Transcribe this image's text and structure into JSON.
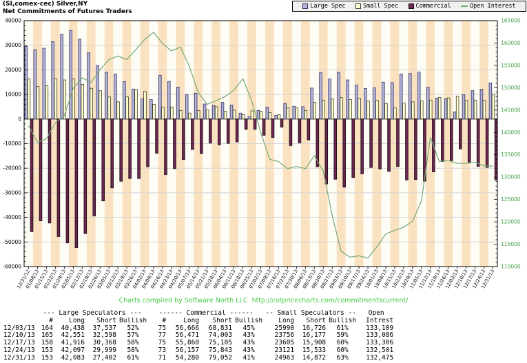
{
  "page": {
    "title_line1": "(SI,comex-cec) Silver,NY",
    "title_line2": "Net Commitments of Futures Traders",
    "footer": "Charts compiled by Software North LLC  http://cotpricecharts.com/commitmentscurrent/"
  },
  "legend": {
    "items": [
      {
        "label": "Large Spec",
        "type": "box",
        "color": "#b3b3da",
        "border": "#31315e"
      },
      {
        "label": "Small Spec",
        "type": "box",
        "color": "#ffffd0",
        "border": "#3c3c28"
      },
      {
        "label": "Commercial",
        "type": "box",
        "color": "#6b2750",
        "border": "#16060f"
      },
      {
        "label": "Open Interest",
        "type": "line",
        "color": "#74a874"
      }
    ]
  },
  "chart_data": {
    "type": "bar",
    "title": "Net Commitments of Futures Traders - (SI,comex-cec) Silver,NY",
    "legend_position": "top-right",
    "x_labels": [
      "12/31/12",
      "01/08/13",
      "01/15/13",
      "01/22/13",
      "01/29/13",
      "02/05/13",
      "02/12/13",
      "02/19/13",
      "02/26/13",
      "03/05/13",
      "03/12/13",
      "03/19/13",
      "03/26/13",
      "04/02/13",
      "04/09/13",
      "04/16/13",
      "04/23/13",
      "04/30/13",
      "05/07/13",
      "05/14/13",
      "05/21/13",
      "05/28/13",
      "06/04/13",
      "06/11/13",
      "06/18/13",
      "06/25/13",
      "07/02/13",
      "07/09/13",
      "07/16/13",
      "07/23/13",
      "07/30/13",
      "08/06/13",
      "08/13/13",
      "08/20/13",
      "08/27/13",
      "09/03/13",
      "09/10/13",
      "09/17/13",
      "09/24/13",
      "10/01/13",
      "10/08/13",
      "10/15/13",
      "10/22/13",
      "10/29/13",
      "11/05/13",
      "11/12/13",
      "11/19/13",
      "11/26/13",
      "12/03/13",
      "12/10/13",
      "12/17/13",
      "12/24/13",
      "12/31/13"
    ],
    "series": [
      {
        "key": "large",
        "name": "Large Spec",
        "axis": "left",
        "type": "bar",
        "values": [
          29500,
          28200,
          28800,
          31500,
          34500,
          36000,
          32500,
          26900,
          21800,
          19000,
          18300,
          15200,
          12200,
          8200,
          7900,
          17800,
          15300,
          13000,
          10000,
          10500,
          6100,
          5500,
          6800,
          5700,
          2400,
          900,
          3500,
          4900,
          1500,
          6300,
          5200,
          5000,
          12600,
          18800,
          16300,
          19000,
          15900,
          13800,
          12400,
          12700,
          15000,
          14800,
          18300,
          18500,
          19100,
          12900,
          8500,
          8300,
          2901,
          9953,
          11548,
          12098,
          14681
        ]
      },
      {
        "key": "small",
        "name": "Small Spec",
        "axis": "left",
        "type": "bar",
        "values": [
          16300,
          13200,
          13500,
          16300,
          15900,
          16300,
          14100,
          12500,
          11500,
          9000,
          7000,
          9000,
          12000,
          11200,
          6000,
          4800,
          4900,
          3500,
          2400,
          3500,
          3700,
          5000,
          3100,
          3600,
          1800,
          3300,
          3100,
          2600,
          1800,
          4500,
          4500,
          3500,
          6800,
          7600,
          8200,
          8700,
          7900,
          8500,
          7300,
          7600,
          6300,
          4500,
          6500,
          7000,
          7400,
          7700,
          8800,
          8600,
          9264,
          7579,
          7697,
          7588,
          10091
        ]
      },
      {
        "key": "commercial",
        "name": "Commercial",
        "axis": "left",
        "type": "bar",
        "values": [
          -45800,
          -41400,
          -42300,
          -47800,
          -50400,
          -52300,
          -46600,
          -39400,
          -33300,
          -28000,
          -25300,
          -24200,
          -24200,
          -19400,
          -13900,
          -22600,
          -20200,
          -16500,
          -12400,
          -14000,
          -9800,
          -10500,
          -9900,
          -9300,
          -4200,
          -4200,
          -6600,
          -7500,
          -3300,
          -10800,
          -9700,
          -8500,
          -19400,
          -26400,
          -24500,
          -27700,
          -23800,
          -22300,
          -19700,
          -20300,
          -21300,
          -19300,
          -24800,
          -24600,
          -25300,
          -21500,
          -17300,
          -16900,
          -12165,
          -17532,
          -19245,
          -19686,
          -24772
        ]
      },
      {
        "key": "open_interest",
        "name": "Open Interest",
        "axis": "right",
        "type": "line",
        "values": [
          141500,
          137800,
          138600,
          142200,
          143700,
          149900,
          152200,
          151200,
          154000,
          156300,
          157100,
          156300,
          158500,
          160800,
          162400,
          159900,
          158200,
          159100,
          154800,
          148900,
          146300,
          147100,
          148000,
          149500,
          152000,
          147000,
          140000,
          134000,
          133500,
          131900,
          132400,
          131900,
          134800,
          131400,
          121400,
          113400,
          112100,
          112400,
          111900,
          114400,
          117300,
          118100,
          118800,
          120100,
          124700,
          138900,
          133500,
          133700,
          133109,
          133086,
          133306,
          132501,
          132475
        ]
      }
    ],
    "left_axis": {
      "min": -60000,
      "max": 40000,
      "major": 10000,
      "minor": 2000
    },
    "right_axis": {
      "min": 110000,
      "max": 165000,
      "major": 5000,
      "minor": 1000
    },
    "grid": true,
    "style": {
      "stripe": "#fdfdf5",
      "stripe_alt": "#fae2c0",
      "grid": "#d4d4d4",
      "zero_line": "#000000",
      "large_fill": "#b3b3da",
      "large_stroke": "#31315e",
      "small_fill": "#ffffd0",
      "small_stroke": "#3c3c28",
      "commercial_fill": "#6b2750",
      "commercial_stroke": "#16060f",
      "line_color": "#74a874",
      "left_label_color": "#000000",
      "right_label_color": "#4aa04a"
    }
  },
  "table": {
    "group_headers": [
      {
        "label": "",
        "span": 1
      },
      {
        "label": "--- Large Speculators ---",
        "span": 4
      },
      {
        "label": "------ Commercial ------",
        "span": 4
      },
      {
        "label": "-- Small Speculators --",
        "span": 3
      },
      {
        "label": "Open",
        "span": 1
      }
    ],
    "col_headers": [
      "",
      "#",
      "Long",
      "Short",
      "Bullish",
      "#",
      "Long",
      "Short",
      "Bullish",
      "Long",
      "Short",
      "Bullish",
      "Intrest"
    ],
    "rows": [
      [
        "12/03/13",
        "164",
        "40,438",
        "37,537",
        "52%",
        "75",
        "56,666",
        "68,831",
        "45%",
        "25990",
        "16,726",
        "61%",
        "133,109"
      ],
      [
        "12/10/13",
        "165",
        "42,551",
        "32,598",
        "57%",
        "77",
        "56,471",
        "74,003",
        "43%",
        "23756",
        "16,177",
        "59%",
        "133,086"
      ],
      [
        "12/17/13",
        "158",
        "41,916",
        "30,368",
        "58%",
        "75",
        "55,860",
        "75,105",
        "43%",
        "23605",
        "15,908",
        "60%",
        "133,306"
      ],
      [
        "12/24/13",
        "153",
        "42,097",
        "29,999",
        "58%",
        "73",
        "56,157",
        "75,843",
        "43%",
        "23121",
        "15,533",
        "60%",
        "132,501"
      ],
      [
        "12/31/13",
        "153",
        "42,083",
        "27,402",
        "61%",
        "71",
        "54,280",
        "79,052",
        "41%",
        "24963",
        "14,872",
        "63%",
        "132,475"
      ]
    ]
  }
}
